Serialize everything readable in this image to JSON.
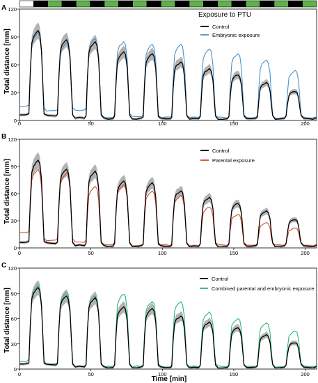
{
  "figure": {
    "xlabel": "Time [min]",
    "ylabel": "Total distance [mm]"
  },
  "chart_data": [
    {
      "panel": "A",
      "type": "line",
      "title": "",
      "xlabel": "",
      "ylabel": "Total distance [mm]",
      "xlim": [
        0,
        208
      ],
      "ylim": [
        0,
        120
      ],
      "x_ticks": [
        "0",
        "50",
        "100",
        "150",
        "200"
      ],
      "y_ticks": [
        "0",
        "30",
        "60",
        "90",
        "120"
      ],
      "legend_title": "Exposure to PTU",
      "legend_position": "top-right",
      "light_dark_bar": [
        "white",
        "black",
        "green",
        "black",
        "green",
        "black",
        "green",
        "black",
        "green",
        "black",
        "green",
        "black",
        "green",
        "black",
        "green",
        "black",
        "green",
        "black",
        "green",
        "black",
        "green"
      ],
      "peak_times": [
        13,
        33,
        53,
        73,
        93,
        113,
        133,
        153,
        173,
        193
      ],
      "series": [
        {
          "name": "Control",
          "color": "#000000",
          "trough": [
            6,
            5,
            3,
            2,
            2,
            2,
            2,
            2,
            2,
            2,
            2
          ],
          "peaks": [
            97,
            87,
            85,
            74,
            72,
            63,
            56,
            49,
            41,
            31
          ]
        },
        {
          "name": "Embryonic exposure",
          "color": "#4a90c8",
          "trough": [
            15,
            10,
            11,
            4,
            4,
            3,
            3,
            3,
            3,
            3,
            3
          ],
          "peaks": [
            95,
            84,
            88,
            85,
            82,
            82,
            77,
            72,
            65,
            54
          ]
        }
      ]
    },
    {
      "panel": "B",
      "type": "line",
      "title": "",
      "xlabel": "",
      "ylabel": "Total distance [mm]",
      "xlim": [
        0,
        208
      ],
      "ylim": [
        0,
        120
      ],
      "x_ticks": [
        "0",
        "50",
        "100",
        "150",
        "200"
      ],
      "y_ticks": [
        "0",
        "30",
        "60",
        "90",
        "120"
      ],
      "legend_position": "top-right",
      "peak_times": [
        13,
        33,
        53,
        73,
        93,
        113,
        133,
        153,
        173,
        193
      ],
      "series": [
        {
          "name": "Control",
          "color": "#000000",
          "trough": [
            6,
            5,
            3,
            2,
            2,
            2,
            2,
            2,
            2,
            2,
            2
          ],
          "peaks": [
            97,
            87,
            85,
            74,
            72,
            63,
            56,
            49,
            41,
            31
          ]
        },
        {
          "name": "Parental exposure",
          "color": "#d04a2c",
          "trough": [
            17,
            8,
            6,
            4,
            3,
            3,
            3,
            3,
            3,
            3,
            3
          ],
          "peaks": [
            87,
            83,
            68,
            70,
            63,
            58,
            45,
            37,
            28,
            22
          ]
        }
      ]
    },
    {
      "panel": "C",
      "type": "line",
      "title": "",
      "xlabel": "Time [min]",
      "ylabel": "Total distance [mm]",
      "xlim": [
        0,
        208
      ],
      "ylim": [
        0,
        120
      ],
      "x_ticks": [
        "0",
        "50",
        "100",
        "150",
        "200"
      ],
      "y_ticks": [
        "0",
        "30",
        "60",
        "90",
        "120"
      ],
      "legend_position": "top-right",
      "peak_times": [
        13,
        33,
        53,
        73,
        93,
        113,
        133,
        153,
        173,
        193
      ],
      "series": [
        {
          "name": "Control",
          "color": "#000000",
          "trough": [
            6,
            5,
            3,
            2,
            2,
            2,
            2,
            2,
            2,
            2,
            2
          ],
          "peaks": [
            97,
            87,
            85,
            74,
            72,
            63,
            56,
            49,
            41,
            31
          ]
        },
        {
          "name": "Combined parental and embryonic exposure",
          "color": "#2bb673",
          "trough": [
            9,
            6,
            4,
            3,
            3,
            3,
            3,
            3,
            3,
            3,
            3
          ],
          "peaks": [
            100,
            91,
            87,
            89,
            80,
            80,
            68,
            60,
            55,
            45
          ]
        }
      ]
    }
  ]
}
